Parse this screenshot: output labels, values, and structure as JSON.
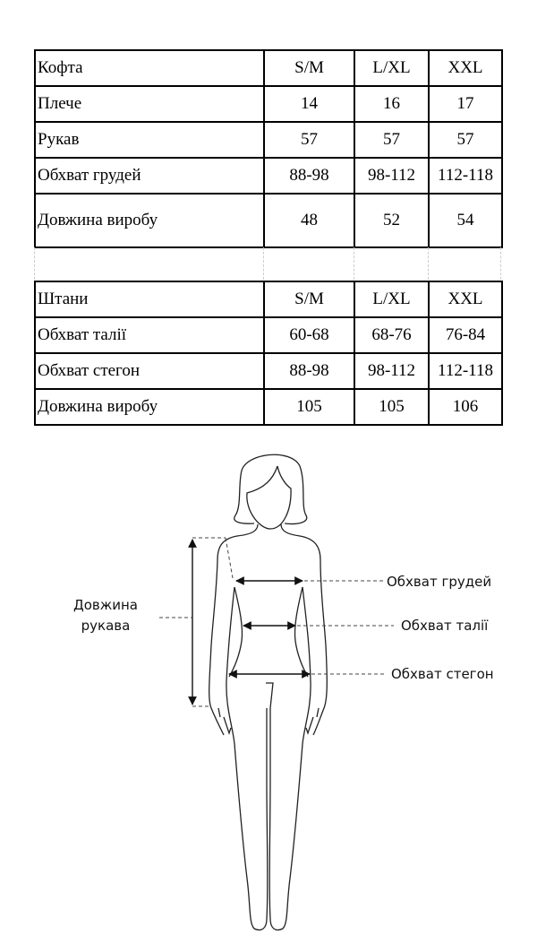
{
  "top_table": {
    "header": [
      "Кофта",
      "S/M",
      "L/XL",
      "XXL"
    ],
    "rows": [
      [
        "Плече",
        "14",
        "16",
        "17"
      ],
      [
        "Рукав",
        "57",
        "57",
        "57"
      ],
      [
        "Обхват грудей",
        "88-98",
        "98-112",
        "112-118"
      ],
      [
        "Довжина виробу",
        "48",
        "52",
        "54"
      ]
    ]
  },
  "pants_table": {
    "header": [
      "Штани",
      "S/M",
      "L/XL",
      "XXL"
    ],
    "rows": [
      [
        "Обхват талії",
        "60-68",
        "68-76",
        "76-84"
      ],
      [
        "Обхват стегон",
        "88-98",
        "98-112",
        "112-118"
      ],
      [
        "Довжина виробу",
        "105",
        "105",
        "106"
      ]
    ]
  },
  "figure": {
    "sleeve_label_line1": "Довжина",
    "sleeve_label_line2": "рукава",
    "chest_label": "Обхват грудей",
    "waist_label": "Обхват талії",
    "hips_label": "Обхват стегон"
  }
}
